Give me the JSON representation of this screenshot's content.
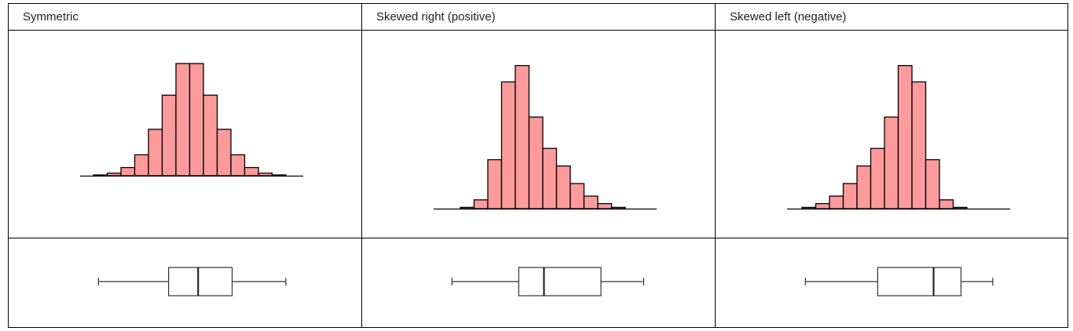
{
  "headers": [
    "Symmetric",
    "Skewed right (positive)",
    "Skewed left (negative)"
  ],
  "colors": {
    "bar_fill": "#fd9a9b",
    "bar_stroke": "#000000",
    "box_stroke": "#333333",
    "border": "#000000"
  },
  "chart_data": [
    {
      "type": "bar",
      "title": "Symmetric",
      "values": [
        0.3,
        1.0,
        3.2,
        8.2,
        18.2,
        31.6,
        44.0,
        44.0,
        31.6,
        18.2,
        8.2,
        3.2,
        1.0,
        0.3
      ],
      "boxplot": {
        "min": 0.08,
        "q1": 0.4,
        "median": 0.535,
        "q3": 0.69,
        "max": 0.935
      }
    },
    {
      "type": "bar",
      "title": "Skewed right (positive)",
      "values": [
        0.5,
        3.5,
        19.5,
        50.5,
        57.0,
        36.5,
        24.0,
        17.0,
        10.0,
        5.0,
        2.0,
        0.5
      ],
      "boxplot": {
        "min": 0.08,
        "q1": 0.385,
        "median": 0.5,
        "q3": 0.76,
        "max": 0.955
      }
    },
    {
      "type": "bar",
      "title": "Skewed left (negative)",
      "values": [
        0.5,
        2.0,
        5.0,
        10.0,
        17.0,
        24.0,
        36.5,
        57.0,
        50.5,
        19.5,
        3.5,
        0.5
      ],
      "boxplot": {
        "min": 0.08,
        "q1": 0.41,
        "median": 0.665,
        "q3": 0.79,
        "max": 0.935
      }
    }
  ]
}
